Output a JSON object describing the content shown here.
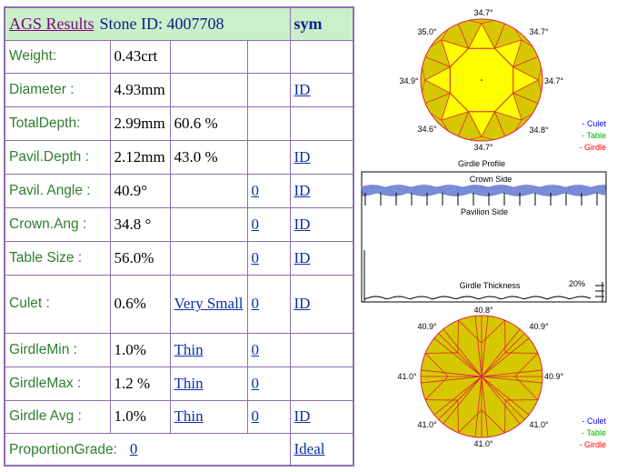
{
  "header": {
    "title": "AGS Results",
    "stone_id": "Stone ID:  4007708",
    "sym": "sym"
  },
  "rows": [
    {
      "label": "Weight:",
      "v1": "0.43crt",
      "v2": "",
      "v3": "",
      "v4": ""
    },
    {
      "label": "Diameter :",
      "v1": "4.93mm",
      "v2": "",
      "v3": "",
      "v4": "ID"
    },
    {
      "label": "TotalDepth:",
      "v1": "2.99mm",
      "v2": "60.6 %",
      "v3": "",
      "v4": ""
    },
    {
      "label": "Pavil.Depth :",
      "v1": "2.12mm",
      "v2": "43.0 %",
      "v3": "",
      "v4": "ID"
    },
    {
      "label": "Pavil. Angle :",
      "v1": "40.9°",
      "v2": "",
      "v3": "0",
      "v4": "ID"
    },
    {
      "label": "Crown.Ang :",
      "v1": "34.8 °",
      "v2": "",
      "v3": "0",
      "v4": "ID"
    },
    {
      "label": "Table Size :",
      "v1": "56.0%",
      "v2": "",
      "v3": "0",
      "v4": "ID"
    },
    {
      "label": "Culet :",
      "v1": "0.6%",
      "v2": "Very Small",
      "v3": "0",
      "v4": "ID"
    },
    {
      "label": "GirdleMin :",
      "v1": "1.0%",
      "v2": "Thin",
      "v3": "0",
      "v4": ""
    },
    {
      "label": "GirdleMax :",
      "v1": "1.2 %",
      "v2": "Thin",
      "v3": "0",
      "v4": ""
    },
    {
      "label": "Girdle Avg :",
      "v1": "1.0%",
      "v2": "Thin",
      "v3": "0",
      "v4": "ID"
    }
  ],
  "footer": {
    "label": "ProportionGrade:",
    "value": "0",
    "grade": "Ideal"
  },
  "top_diagram": {
    "angles": [
      "34.7°",
      "34.7°",
      "34.7°",
      "34.8°",
      "34.7°",
      "34.6°",
      "34.9°",
      "35.0°"
    ],
    "caption": "Girdle Profile",
    "legend": [
      "- Culet",
      "- Table",
      "- Girdle"
    ]
  },
  "profile": {
    "crown_label": "Crown Side",
    "pavilion_label": "Pavilion Side",
    "thickness_label": "Girdle Thickness",
    "percent_label": "20%"
  },
  "bottom_diagram": {
    "angles": [
      "40.8°",
      "40.9°",
      "40.9°",
      "41.0°",
      "41.0°",
      "41.0°",
      "41.0°",
      "40.9°"
    ],
    "legend": [
      "- Culet",
      "- Table",
      "- Girdle"
    ]
  },
  "colors": {
    "table_border": "#8d6eb0",
    "label_green": "#2f7e2f",
    "link_blue": "#0a2fa8",
    "header_bg": "#c9f0c9",
    "facet_yellow": "#ffff00",
    "facet_olive": "#d6c800",
    "facet_lines": "#e0203c",
    "legend_culet": "#0000ff",
    "legend_table": "#00b000",
    "legend_girdle": "#ff0000",
    "profile_blue": "#7a8cd8"
  }
}
